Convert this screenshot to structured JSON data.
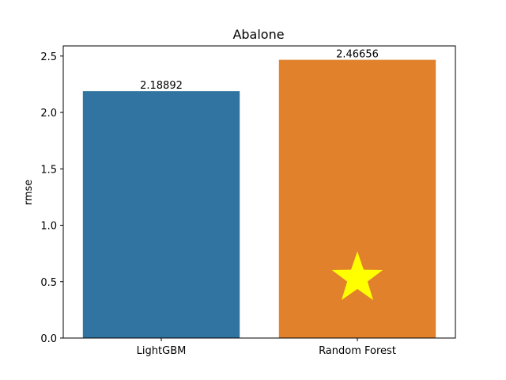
{
  "chart_data": {
    "type": "bar",
    "title": "Abalone",
    "xlabel": "",
    "ylabel": "rmse",
    "categories": [
      "LightGBM",
      "Random Forest"
    ],
    "values": [
      2.18892,
      2.46656
    ],
    "value_labels": [
      "2.18892",
      "2.46656"
    ],
    "colors": [
      "#3274a1",
      "#e1812c"
    ],
    "ylim": [
      0,
      2.58989
    ],
    "yticks": [
      0.0,
      0.5,
      1.0,
      1.5,
      2.0,
      2.5
    ],
    "ytick_labels": [
      "0.0",
      "0.5",
      "1.0",
      "1.5",
      "2.0",
      "2.5"
    ],
    "grid": false,
    "annotations": [
      {
        "shape": "star",
        "category": "Random Forest",
        "y": 0.53,
        "color": "#ffff00"
      }
    ]
  }
}
